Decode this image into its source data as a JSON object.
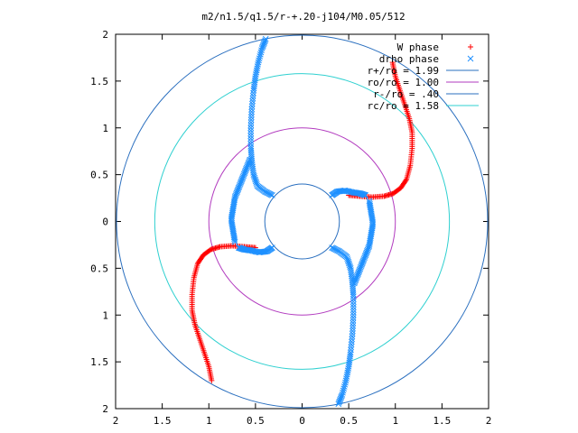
{
  "chart_data": {
    "type": "scatter",
    "title": "m2/n1.5/q1.5/r-+.20-j104/M0.05/512",
    "xlabel": "",
    "ylabel": "",
    "xlim": [
      -2,
      2
    ],
    "ylim": [
      -2,
      2
    ],
    "x_tick_labels": [
      "2",
      "1.5",
      "1",
      "0.5",
      "0",
      "0.5",
      "1",
      "1.5",
      "2"
    ],
    "y_tick_labels": [
      "2",
      "1.5",
      "1",
      "0.5",
      "0",
      "0.5",
      "1",
      "1.5",
      "2"
    ],
    "grid": false,
    "legend_position": "top-right",
    "circles": [
      {
        "name": "r+/ro = 1.99",
        "radius": 1.99,
        "color": "#2a6fbf"
      },
      {
        "name": "ro/ro = 1.00",
        "radius": 1.0,
        "color": "#b23bbf"
      },
      {
        "name": "r-/ro = .40",
        "radius": 0.4,
        "color": "#2a6fbf"
      },
      {
        "name": "rc/ro = 1.58",
        "radius": 1.58,
        "color": "#2fd0d0"
      }
    ],
    "series": [
      {
        "name": "W phase",
        "marker": "plus",
        "color": "#ff0000",
        "arms": [
          {
            "x": [
              0.5,
              0.62,
              0.75,
              0.88,
              0.98,
              1.06,
              1.12,
              1.16,
              1.18,
              1.18,
              1.15,
              1.1,
              1.05,
              1.0,
              0.97
            ],
            "y": [
              0.28,
              0.27,
              0.26,
              0.27,
              0.3,
              0.36,
              0.45,
              0.6,
              0.78,
              0.95,
              1.1,
              1.25,
              1.4,
              1.55,
              1.7
            ]
          },
          {
            "x": [
              -0.5,
              -0.62,
              -0.75,
              -0.88,
              -0.98,
              -1.06,
              -1.12,
              -1.16,
              -1.18,
              -1.18,
              -1.15,
              -1.1,
              -1.05,
              -1.0,
              -0.97
            ],
            "y": [
              -0.28,
              -0.27,
              -0.26,
              -0.27,
              -0.3,
              -0.36,
              -0.45,
              -0.6,
              -0.78,
              -0.95,
              -1.1,
              -1.25,
              -1.4,
              -1.55,
              -1.7
            ]
          }
        ]
      },
      {
        "name": "drho phase",
        "marker": "x",
        "color": "#1e90ff",
        "arms": [
          {
            "x": [
              0.32,
              0.4,
              0.48,
              0.52,
              0.54,
              0.55,
              0.55,
              0.54,
              0.52,
              0.5,
              0.47,
              0.43,
              0.39
            ],
            "y": [
              -0.28,
              -0.32,
              -0.38,
              -0.5,
              -0.65,
              -0.8,
              -1.0,
              -1.2,
              -1.4,
              -1.55,
              -1.7,
              -1.85,
              -1.95
            ]
          },
          {
            "x": [
              -0.32,
              -0.4,
              -0.48,
              -0.52,
              -0.54,
              -0.55,
              -0.55,
              -0.54,
              -0.52,
              -0.5,
              -0.47,
              -0.43,
              -0.39
            ],
            "y": [
              0.28,
              0.32,
              0.38,
              0.5,
              0.65,
              0.8,
              1.0,
              1.2,
              1.4,
              1.55,
              1.7,
              1.85,
              1.95
            ]
          },
          {
            "x": [
              0.32,
              0.38,
              0.46,
              0.55,
              0.62,
              0.68
            ],
            "y": [
              0.28,
              0.32,
              0.33,
              0.31,
              0.3,
              0.28
            ]
          },
          {
            "x": [
              -0.32,
              -0.38,
              -0.46,
              -0.55,
              -0.62,
              -0.68
            ],
            "y": [
              -0.28,
              -0.32,
              -0.33,
              -0.31,
              -0.3,
              -0.28
            ]
          },
          {
            "x": [
              0.72,
              0.74,
              0.76,
              0.74,
              0.72,
              0.68,
              0.64,
              0.6,
              0.56
            ],
            "y": [
              0.22,
              0.1,
              -0.02,
              -0.14,
              -0.26,
              -0.36,
              -0.46,
              -0.56,
              -0.66
            ]
          },
          {
            "x": [
              -0.72,
              -0.74,
              -0.76,
              -0.74,
              -0.72,
              -0.68,
              -0.64,
              -0.6,
              -0.56
            ],
            "y": [
              -0.22,
              -0.1,
              0.02,
              0.14,
              0.26,
              0.36,
              0.46,
              0.56,
              0.66
            ]
          }
        ]
      }
    ]
  }
}
